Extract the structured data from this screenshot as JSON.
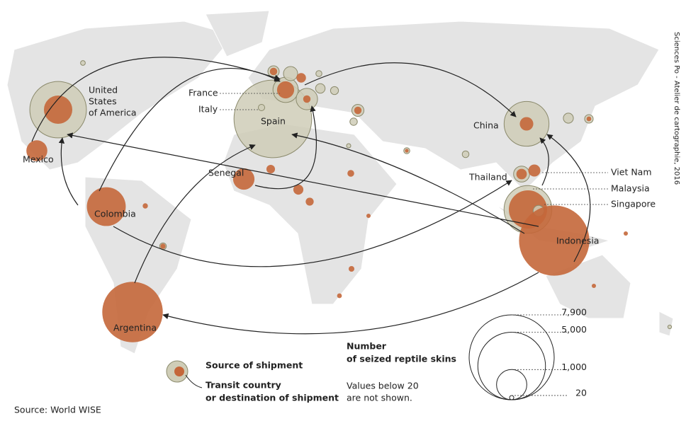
{
  "credit": "Sciences Po - Atelier de cartographie, 2016",
  "source": "Source: World WISE",
  "colors": {
    "source": "#c4673a",
    "transit": "#cfcdb7",
    "transit_stroke": "#8b8a6c"
  },
  "places": [
    {
      "label": [
        "United",
        "States",
        "of America"
      ],
      "transit": 3500,
      "source": 880
    },
    {
      "label": [
        "Mexico"
      ],
      "source": 480
    },
    {
      "label": [
        "Colombia"
      ],
      "source": 1650
    },
    {
      "label": [
        "Argentina"
      ],
      "source": 4000
    },
    {
      "label": [
        "Spain"
      ],
      "transit": 6600
    },
    {
      "label": [
        "France"
      ],
      "transit": 700,
      "source": 320
    },
    {
      "label": [
        "Italy"
      ],
      "transit": 45
    },
    {
      "label": [
        "Senegal"
      ],
      "source": 500
    },
    {
      "label": [
        "China"
      ],
      "transit": 2200,
      "source": 200
    },
    {
      "label": [
        "Thailand"
      ],
      "transit": 280,
      "source": 120
    },
    {
      "label": [
        "Viet Nam"
      ],
      "source": 160
    },
    {
      "label": [
        "Malaysia"
      ],
      "transit": 2500,
      "source": 1600
    },
    {
      "label": [
        "Singapore"
      ],
      "transit": 130
    },
    {
      "label": [
        "Indonesia"
      ],
      "source": 5400
    },
    {
      "transit": 25
    },
    {
      "transit": 140,
      "source": 60
    },
    {
      "transit": 220
    },
    {
      "source": 100
    },
    {
      "transit": 40
    },
    {
      "transit": 100
    },
    {
      "transit": 500,
      "source": 60
    },
    {
      "transit": 70
    },
    {
      "transit": 160,
      "source": 60
    },
    {
      "transit": 60
    },
    {
      "transit": 20
    },
    {
      "transit": 40,
      "source": 15
    },
    {
      "transit": 50
    },
    {
      "transit": 110
    },
    {
      "transit": 80,
      "source": 25
    },
    {
      "source": 80
    },
    {
      "source": 110
    },
    {
      "source": 70
    },
    {
      "source": 50
    },
    {
      "source": 30
    },
    {
      "transit": 50,
      "source": 30
    },
    {
      "source": 20
    },
    {
      "source": 35
    },
    {
      "source": 25
    },
    {
      "source": 20
    },
    {
      "source": 20
    },
    {
      "transit": 15
    }
  ],
  "legend": {
    "source": "Source of shipment",
    "transit": [
      "Transit country",
      "or destination of shipment"
    ]
  },
  "size_legend": {
    "title": [
      "Number",
      "of seized reptile skins"
    ],
    "note": [
      "Values below 20",
      "are not shown."
    ],
    "ticks": [
      {
        "value": 7900,
        "label": "7,900"
      },
      {
        "value": 5000,
        "label": "5,000"
      },
      {
        "value": 1000,
        "label": "1,000"
      },
      {
        "value": 20,
        "label": "20"
      }
    ]
  }
}
